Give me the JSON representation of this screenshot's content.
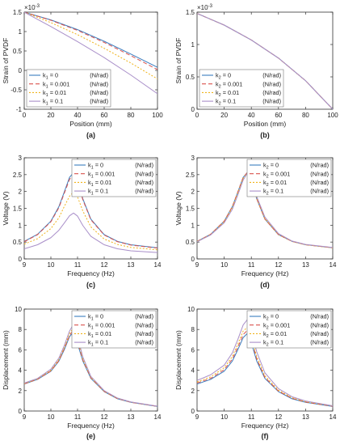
{
  "colors": {
    "s0": "#3b7dbf",
    "s1": "#d9534f",
    "s2": "#f0b31c",
    "s3": "#a98fc9",
    "axis": "#333333",
    "text": "#222222"
  },
  "chart_data": [
    {
      "id": "a",
      "type": "line",
      "caption": "(a)",
      "xlabel": "Position (mm)",
      "ylabel": "Strain of PVDF",
      "exponent": "×10",
      "exponent_power": "-3",
      "xlim": [
        0,
        100
      ],
      "ylim": [
        -1,
        1.5
      ],
      "xticks": [
        0,
        20,
        40,
        60,
        80,
        100
      ],
      "yticks": [
        -1,
        -0.5,
        0,
        0.5,
        1,
        1.5
      ],
      "ytick_labels": [
        "-1",
        "-0.5",
        "0",
        "0.5",
        "1",
        "1.5"
      ],
      "legend_position": "bottom-left",
      "x": [
        0,
        20,
        40,
        60,
        80,
        100
      ],
      "series": [
        {
          "name": "k",
          "sub": "1",
          "val": " = 0",
          "unit": "(N/rad)",
          "color_key": "s0",
          "dash": "",
          "values": [
            1.5,
            1.3,
            1.05,
            0.75,
            0.42,
            0.08
          ]
        },
        {
          "name": "k",
          "sub": "1",
          "val": " = 0.001",
          "unit": "(N/rad)",
          "color_key": "s1",
          "dash": "5,3",
          "values": [
            1.5,
            1.29,
            1.03,
            0.72,
            0.38,
            0.02
          ]
        },
        {
          "name": "k",
          "sub": "1",
          "val": " = 0.01",
          "unit": "(N/rad)",
          "color_key": "s2",
          "dash": "2,2",
          "values": [
            1.5,
            1.23,
            0.92,
            0.57,
            0.19,
            -0.22
          ]
        },
        {
          "name": "k",
          "sub": "1",
          "val": " = 0.1",
          "unit": "(N/rad)",
          "color_key": "s3",
          "dash": "",
          "values": [
            1.5,
            1.13,
            0.74,
            0.33,
            -0.12,
            -0.6
          ]
        }
      ]
    },
    {
      "id": "b",
      "type": "line",
      "caption": "(b)",
      "xlabel": "Position (mm)",
      "ylabel": "Strain of PVDF",
      "exponent": "×10",
      "exponent_power": "-3",
      "xlim": [
        0,
        100
      ],
      "ylim": [
        0,
        1.5
      ],
      "xticks": [
        0,
        20,
        40,
        60,
        80,
        100
      ],
      "yticks": [
        0,
        0.5,
        1,
        1.5
      ],
      "ytick_labels": [
        "0",
        "0.5",
        "1",
        "1.5"
      ],
      "legend_position": "bottom-left",
      "x": [
        0,
        20,
        40,
        60,
        80,
        100
      ],
      "series": [
        {
          "name": "k",
          "sub": "2",
          "val": " = 0",
          "unit": "(N/rad)",
          "color_key": "s0",
          "dash": "",
          "values": [
            1.48,
            1.3,
            1.07,
            0.79,
            0.44,
            0.0
          ]
        },
        {
          "name": "k",
          "sub": "2",
          "val": " = 0.001",
          "unit": "(N/rad)",
          "color_key": "s1",
          "dash": "5,3",
          "values": [
            1.48,
            1.3,
            1.07,
            0.79,
            0.44,
            0.0
          ]
        },
        {
          "name": "k",
          "sub": "2",
          "val": " = 0.01",
          "unit": "(N/rad)",
          "color_key": "s2",
          "dash": "2,2",
          "values": [
            1.48,
            1.3,
            1.07,
            0.79,
            0.44,
            0.0
          ]
        },
        {
          "name": "k",
          "sub": "2",
          "val": " = 0.1",
          "unit": "(N/rad)",
          "color_key": "s3",
          "dash": "",
          "values": [
            1.48,
            1.3,
            1.07,
            0.79,
            0.44,
            0.0
          ]
        }
      ]
    },
    {
      "id": "c",
      "type": "line",
      "caption": "(c)",
      "xlabel": "Frequency (Hz)",
      "ylabel": "Voltage (V)",
      "exponent": "",
      "exponent_power": "",
      "xlim": [
        9,
        14
      ],
      "ylim": [
        0,
        3
      ],
      "xticks": [
        9,
        10,
        11,
        12,
        13,
        14
      ],
      "yticks": [
        0,
        0.5,
        1,
        1.5,
        2,
        2.5,
        3
      ],
      "ytick_labels": [
        "0",
        "0.5",
        "1",
        "1.5",
        "2",
        "2.5",
        "3"
      ],
      "legend_position": "top-right",
      "x": [
        9,
        9.5,
        10,
        10.3,
        10.5,
        10.7,
        10.85,
        11,
        11.2,
        11.5,
        12,
        12.5,
        13,
        14
      ],
      "series": [
        {
          "name": "k",
          "sub": "1",
          "val": " = 0",
          "unit": "(N/rad)",
          "color_key": "s0",
          "dash": "",
          "values": [
            0.52,
            0.73,
            1.12,
            1.55,
            1.98,
            2.42,
            2.56,
            2.35,
            1.78,
            1.18,
            0.72,
            0.52,
            0.42,
            0.33
          ]
        },
        {
          "name": "k",
          "sub": "1",
          "val": " = 0.001",
          "unit": "(N/rad)",
          "color_key": "s1",
          "dash": "5,3",
          "values": [
            0.51,
            0.72,
            1.1,
            1.52,
            1.94,
            2.36,
            2.5,
            2.3,
            1.75,
            1.16,
            0.71,
            0.51,
            0.41,
            0.32
          ]
        },
        {
          "name": "k",
          "sub": "1",
          "val": " = 0.01",
          "unit": "(N/rad)",
          "color_key": "s2",
          "dash": "2,2",
          "values": [
            0.44,
            0.6,
            0.9,
            1.22,
            1.55,
            1.86,
            1.98,
            1.84,
            1.42,
            0.95,
            0.59,
            0.43,
            0.34,
            0.27
          ]
        },
        {
          "name": "k",
          "sub": "1",
          "val": " = 0.1",
          "unit": "(N/rad)",
          "color_key": "s3",
          "dash": "",
          "values": [
            0.3,
            0.42,
            0.63,
            0.85,
            1.06,
            1.28,
            1.36,
            1.27,
            0.99,
            0.67,
            0.42,
            0.3,
            0.24,
            0.19
          ]
        }
      ]
    },
    {
      "id": "d",
      "type": "line",
      "caption": "(d)",
      "xlabel": "Frequency (Hz)",
      "ylabel": "Voltage (V)",
      "exponent": "",
      "exponent_power": "",
      "xlim": [
        9,
        14
      ],
      "ylim": [
        0,
        3
      ],
      "xticks": [
        9,
        10,
        11,
        12,
        13,
        14
      ],
      "yticks": [
        0,
        0.5,
        1,
        1.5,
        2,
        2.5,
        3
      ],
      "ytick_labels": [
        "0",
        "0.5",
        "1",
        "1.5",
        "2",
        "2.5",
        "3"
      ],
      "legend_position": "top-right",
      "x": [
        9,
        9.5,
        10,
        10.3,
        10.5,
        10.7,
        10.85,
        11,
        11.2,
        11.5,
        12,
        12.5,
        13,
        14
      ],
      "series": [
        {
          "name": "k",
          "sub": "2",
          "val": " = 0",
          "unit": "(N/rad)",
          "color_key": "s0",
          "dash": "",
          "values": [
            0.52,
            0.73,
            1.12,
            1.55,
            1.98,
            2.42,
            2.56,
            2.35,
            1.78,
            1.18,
            0.72,
            0.52,
            0.42,
            0.33
          ]
        },
        {
          "name": "k",
          "sub": "2",
          "val": " = 0.001",
          "unit": "(N/rad)",
          "color_key": "s1",
          "dash": "5,3",
          "values": [
            0.52,
            0.73,
            1.12,
            1.55,
            1.98,
            2.42,
            2.56,
            2.35,
            1.78,
            1.18,
            0.72,
            0.52,
            0.42,
            0.33
          ]
        },
        {
          "name": "k",
          "sub": "2",
          "val": " = 0.01",
          "unit": "(N/rad)",
          "color_key": "s2",
          "dash": "2,2",
          "values": [
            0.52,
            0.72,
            1.1,
            1.52,
            1.95,
            2.39,
            2.55,
            2.37,
            1.8,
            1.2,
            0.73,
            0.52,
            0.42,
            0.33
          ]
        },
        {
          "name": "k",
          "sub": "2",
          "val": " = 0.1",
          "unit": "(N/rad)",
          "color_key": "s3",
          "dash": "",
          "values": [
            0.51,
            0.71,
            1.07,
            1.47,
            1.89,
            2.34,
            2.54,
            2.4,
            1.85,
            1.24,
            0.75,
            0.53,
            0.43,
            0.34
          ]
        }
      ]
    },
    {
      "id": "e",
      "type": "line",
      "caption": "(e)",
      "xlabel": "Frequency (Hz)",
      "ylabel": "Displacement (mm)",
      "exponent": "",
      "exponent_power": "",
      "xlim": [
        9,
        14
      ],
      "ylim": [
        0,
        10
      ],
      "xticks": [
        9,
        10,
        11,
        12,
        13,
        14
      ],
      "yticks": [
        0,
        2,
        4,
        6,
        8,
        10
      ],
      "ytick_labels": [
        "0",
        "2",
        "4",
        "6",
        "8",
        "10"
      ],
      "legend_position": "top-right",
      "x": [
        9,
        9.5,
        10,
        10.3,
        10.5,
        10.7,
        10.8,
        11,
        11.2,
        11.5,
        12,
        12.5,
        13,
        14
      ],
      "series": [
        {
          "name": "k",
          "sub": "1",
          "val": " = 0",
          "unit": "(N/rad)",
          "color_key": "s0",
          "dash": "",
          "values": [
            2.65,
            3.1,
            3.9,
            4.9,
            6.0,
            7.3,
            7.6,
            6.6,
            4.9,
            3.2,
            1.9,
            1.2,
            0.85,
            0.45
          ]
        },
        {
          "name": "k",
          "sub": "1",
          "val": " = 0.001",
          "unit": "(N/rad)",
          "color_key": "s1",
          "dash": "5,3",
          "values": [
            2.67,
            3.12,
            3.93,
            4.95,
            6.1,
            7.4,
            7.8,
            6.8,
            5.0,
            3.25,
            1.92,
            1.22,
            0.86,
            0.46
          ]
        },
        {
          "name": "k",
          "sub": "1",
          "val": " = 0.01",
          "unit": "(N/rad)",
          "color_key": "s2",
          "dash": "2,2",
          "values": [
            2.7,
            3.15,
            4.0,
            5.05,
            6.2,
            7.6,
            8.0,
            7.0,
            5.1,
            3.3,
            1.95,
            1.24,
            0.87,
            0.47
          ]
        },
        {
          "name": "k",
          "sub": "1",
          "val": " = 0.1",
          "unit": "(N/rad)",
          "color_key": "s3",
          "dash": "",
          "values": [
            2.75,
            3.2,
            4.1,
            5.2,
            6.4,
            7.85,
            8.3,
            7.3,
            5.3,
            3.4,
            2.0,
            1.27,
            0.89,
            0.48
          ]
        }
      ]
    },
    {
      "id": "f",
      "type": "line",
      "caption": "(f)",
      "xlabel": "Frequency (Hz)",
      "ylabel": "Displacement (mm)",
      "exponent": "",
      "exponent_power": "",
      "xlim": [
        9,
        14
      ],
      "ylim": [
        0,
        10
      ],
      "xticks": [
        9,
        10,
        11,
        12,
        13,
        14
      ],
      "yticks": [
        0,
        2,
        4,
        6,
        8,
        10
      ],
      "ytick_labels": [
        "0",
        "2",
        "4",
        "6",
        "8",
        "10"
      ],
      "legend_position": "top-right",
      "x": [
        9,
        9.5,
        10,
        10.3,
        10.5,
        10.7,
        10.85,
        11,
        11.2,
        11.5,
        12,
        12.5,
        13,
        14
      ],
      "series": [
        {
          "name": "k",
          "sub": "2",
          "val": " = 0",
          "unit": "(N/rad)",
          "color_key": "s0",
          "dash": "",
          "values": [
            2.65,
            3.1,
            3.9,
            4.9,
            6.0,
            7.2,
            7.6,
            6.7,
            4.9,
            3.2,
            1.9,
            1.2,
            0.85,
            0.45
          ]
        },
        {
          "name": "k",
          "sub": "2",
          "val": " = 0.001",
          "unit": "(N/rad)",
          "color_key": "s1",
          "dash": "5,3",
          "values": [
            2.75,
            3.2,
            4.05,
            5.1,
            6.25,
            7.5,
            7.9,
            7.0,
            5.1,
            3.3,
            1.95,
            1.25,
            0.88,
            0.47
          ]
        },
        {
          "name": "k",
          "sub": "2",
          "val": " = 0.01",
          "unit": "(N/rad)",
          "color_key": "s2",
          "dash": "2,2",
          "values": [
            2.85,
            3.35,
            4.25,
            5.35,
            6.55,
            7.85,
            8.2,
            7.3,
            5.35,
            3.45,
            2.05,
            1.3,
            0.92,
            0.49
          ]
        },
        {
          "name": "k",
          "sub": "2",
          "val": " = 0.1",
          "unit": "(N/rad)",
          "color_key": "s3",
          "dash": "",
          "values": [
            3.0,
            3.55,
            4.5,
            5.7,
            7.0,
            8.45,
            8.95,
            7.9,
            5.8,
            3.75,
            2.2,
            1.4,
            0.98,
            0.52
          ]
        }
      ]
    }
  ]
}
